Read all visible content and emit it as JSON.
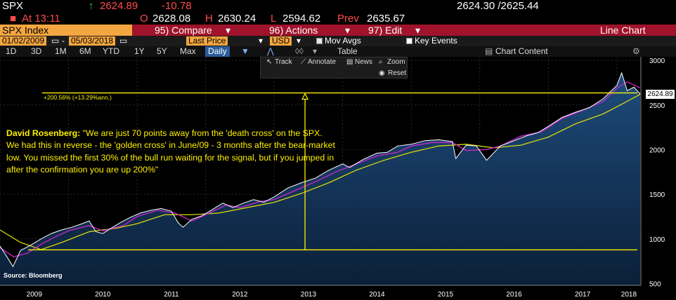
{
  "header": {
    "ticker": "SPX",
    "up_arrow": "↑",
    "last": "2624.89",
    "change": "-10.78",
    "bid_ask": "2624.30 /2625.44",
    "time_label": "At 13:11",
    "open_label": "O",
    "open": "2628.08",
    "high_label": "H",
    "high": "2630.24",
    "low_label": "L",
    "low": "2594.62",
    "prev_label": "Prev",
    "prev": "2635.67"
  },
  "toolbar": {
    "security": "SPX Index",
    "compare": "95) Compare",
    "actions": "96) Actions",
    "edit": "97) Edit",
    "chart_type": "Line Chart",
    "arrow_symbol": "▾"
  },
  "controls": {
    "start_date": "01/02/2009",
    "dash": "-",
    "end_date": "05/03/2018",
    "field": "Last Price",
    "currency": "USD",
    "mov_avgs": "Mov Avgs",
    "key_events": "Key Events"
  },
  "periods": {
    "items": [
      "1D",
      "3D",
      "1M",
      "6M",
      "YTD",
      "1Y",
      "5Y",
      "Max"
    ],
    "frequency": "Daily",
    "table": "Table",
    "chart_content": "Chart Content"
  },
  "toolbox": {
    "track": "Track",
    "annotate": "Annotate",
    "news": "News",
    "zoom": "Zoom",
    "reset": "Reset"
  },
  "annotation": {
    "author": "David Rosenberg:",
    "quote": " \"We are just 70 points away from the 'death cross' on the SPX. We had this in reverse - the 'golden cross' in June/09 - 3 months after the bear-market low. You missed the first 30% of the bull run waiting for the signal, but if you jumped in after the confirmation you are up 200%\"",
    "gain": "+200.56% (+13.29%ann.)",
    "source": "Source: Bloomberg"
  },
  "price_tag": "2624.89",
  "colors": {
    "price": "#ffffff",
    "ma50": "#d026d0",
    "ma200": "#d8d80a",
    "area": "#173b63",
    "annotation": "#fff200",
    "background": "#000000"
  },
  "chart_data": {
    "type": "area",
    "title": "",
    "xlabel": "",
    "ylabel": "",
    "x_ticks": [
      "2009",
      "2010",
      "2011",
      "2012",
      "2013",
      "2014",
      "2015",
      "2016",
      "2017",
      "2018"
    ],
    "y_ticks": [
      500,
      1000,
      1500,
      2000,
      2500,
      3000
    ],
    "ylim": [
      480,
      3040
    ],
    "xlim": [
      2009.0,
      2018.35
    ],
    "grid": true,
    "series": [
      {
        "x": [
          2009.0,
          2009.1,
          2009.19,
          2009.3,
          2009.45,
          2009.6,
          2009.75,
          2009.9,
          2010.05,
          2010.2,
          2010.3,
          2010.4,
          2010.5,
          2010.6,
          2010.75,
          2010.9,
          2011.05,
          2011.2,
          2011.35,
          2011.5,
          2011.6,
          2011.67,
          2011.8,
          2011.95,
          2012.1,
          2012.25,
          2012.4,
          2012.55,
          2012.7,
          2012.85,
          2013.0,
          2013.2,
          2013.4,
          2013.6,
          2013.8,
          2014.0,
          2014.1,
          2014.3,
          2014.5,
          2014.65,
          2014.8,
          2015.0,
          2015.2,
          2015.4,
          2015.6,
          2015.65,
          2015.8,
          2015.95,
          2016.1,
          2016.3,
          2016.5,
          2016.7,
          2016.85,
          2017.0,
          2017.2,
          2017.4,
          2017.6,
          2017.8,
          2018.0,
          2018.07,
          2018.15,
          2018.25,
          2018.34
        ],
        "values": [
          920,
          800,
          690,
          870,
          930,
          1000,
          1060,
          1100,
          1130,
          1170,
          1200,
          1080,
          1060,
          1110,
          1180,
          1240,
          1290,
          1320,
          1340,
          1310,
          1180,
          1130,
          1220,
          1260,
          1330,
          1400,
          1350,
          1400,
          1440,
          1410,
          1470,
          1570,
          1630,
          1680,
          1770,
          1840,
          1800,
          1890,
          1960,
          1970,
          2040,
          2060,
          2100,
          2110,
          2090,
          1900,
          2050,
          2040,
          1880,
          2040,
          2100,
          2160,
          2190,
          2260,
          2360,
          2420,
          2470,
          2570,
          2720,
          2860,
          2660,
          2700,
          2624
        ]
      },
      {
        "x": [
          2009.0,
          2009.2,
          2009.4,
          2009.6,
          2009.8,
          2010.0,
          2010.3,
          2010.5,
          2010.8,
          2011.0,
          2011.3,
          2011.55,
          2011.8,
          2012.0,
          2012.3,
          2012.5,
          2012.8,
          2013.0,
          2013.3,
          2013.6,
          2013.9,
          2014.2,
          2014.5,
          2014.8,
          2015.0,
          2015.3,
          2015.6,
          2015.8,
          2016.1,
          2016.3,
          2016.6,
          2016.9,
          2017.2,
          2017.5,
          2017.8,
          2018.0,
          2018.15,
          2018.34
        ],
        "values": [
          900,
          800,
          840,
          940,
          1020,
          1090,
          1150,
          1090,
          1150,
          1250,
          1320,
          1290,
          1200,
          1270,
          1380,
          1350,
          1420,
          1440,
          1540,
          1640,
          1750,
          1840,
          1930,
          1970,
          2040,
          2080,
          2080,
          1990,
          2000,
          2040,
          2150,
          2200,
          2350,
          2440,
          2540,
          2690,
          2760,
          2690
        ]
      },
      {
        "x": [
          2009.0,
          2009.3,
          2009.6,
          2009.9,
          2010.3,
          2010.7,
          2011.0,
          2011.4,
          2011.8,
          2012.2,
          2012.6,
          2013.0,
          2013.4,
          2013.8,
          2014.2,
          2014.6,
          2015.0,
          2015.4,
          2015.8,
          2016.2,
          2016.6,
          2017.0,
          2017.4,
          2017.8,
          2018.1,
          2018.34
        ],
        "values": [
          1100,
          960,
          880,
          960,
          1080,
          1120,
          1170,
          1270,
          1270,
          1290,
          1350,
          1410,
          1510,
          1630,
          1770,
          1880,
          1970,
          2040,
          2060,
          2020,
          2050,
          2140,
          2290,
          2400,
          2520,
          2620
        ]
      }
    ],
    "reference_lines": {
      "upper_level": 2635,
      "lower_level": 877,
      "arrow_x": 2013.45
    }
  }
}
